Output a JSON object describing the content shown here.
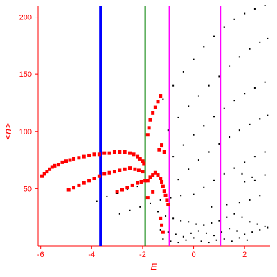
{
  "chart_data": {
    "type": "scatter",
    "title": "",
    "xlabel": "E",
    "ylabel": "<n>",
    "xlim": [
      -6.1,
      3.0
    ],
    "ylim": [
      0,
      210
    ],
    "xticks": [
      -6,
      -4,
      -2,
      0,
      2
    ],
    "yticks": [
      50,
      100,
      150,
      200
    ],
    "grid": false,
    "legend": "none",
    "colors": {
      "axis": "#ff0000",
      "red_series": "#ff0000",
      "black_series": "#000000",
      "blue_line": "#0000ff",
      "green_line": "#008000",
      "magenta_line": "#ff00ff"
    },
    "vertical_lines": [
      {
        "x": -3.65,
        "color": "#0000ff",
        "width": "thick"
      },
      {
        "x": -1.9,
        "color": "#008000",
        "width": "medium"
      },
      {
        "x": -0.95,
        "color": "#ff00ff",
        "width": "medium"
      },
      {
        "x": 1.05,
        "color": "#ff00ff",
        "width": "medium"
      }
    ],
    "series": [
      {
        "color": "#ff0000",
        "marker": "square",
        "points": [
          [
            -5.95,
            61
          ],
          [
            -5.85,
            63
          ],
          [
            -5.75,
            65
          ],
          [
            -5.65,
            67
          ],
          [
            -5.55,
            69
          ],
          [
            -5.45,
            70
          ],
          [
            -5.3,
            71
          ],
          [
            -5.15,
            73
          ],
          [
            -5.0,
            74
          ],
          [
            -4.85,
            75
          ],
          [
            -4.7,
            76
          ],
          [
            -4.5,
            77
          ],
          [
            -4.3,
            78
          ],
          [
            -4.1,
            79
          ],
          [
            -3.9,
            80
          ],
          [
            -3.7,
            80
          ],
          [
            -3.5,
            81
          ],
          [
            -3.3,
            81
          ],
          [
            -3.1,
            82
          ],
          [
            -2.9,
            82
          ],
          [
            -2.7,
            82
          ],
          [
            -2.5,
            81
          ],
          [
            -2.35,
            80
          ],
          [
            -2.2,
            78
          ],
          [
            -2.1,
            76
          ],
          [
            -2.0,
            74
          ],
          [
            -1.95,
            72
          ],
          [
            -4.9,
            49
          ],
          [
            -4.7,
            51
          ],
          [
            -4.5,
            53
          ],
          [
            -4.3,
            55
          ],
          [
            -4.1,
            57
          ],
          [
            -3.9,
            59
          ],
          [
            -3.7,
            61
          ],
          [
            -3.5,
            63
          ],
          [
            -3.3,
            64
          ],
          [
            -3.1,
            65
          ],
          [
            -2.9,
            66
          ],
          [
            -2.7,
            67
          ],
          [
            -2.5,
            68
          ],
          [
            -2.3,
            67
          ],
          [
            -2.15,
            66
          ],
          [
            -2.0,
            65
          ],
          [
            -3.0,
            47
          ],
          [
            -2.8,
            49
          ],
          [
            -2.6,
            51
          ],
          [
            -2.4,
            53
          ],
          [
            -2.2,
            55
          ],
          [
            -2.05,
            56
          ],
          [
            -1.9,
            57
          ],
          [
            -1.8,
            57
          ],
          [
            -1.7,
            60
          ],
          [
            -1.6,
            62
          ],
          [
            -1.5,
            64
          ],
          [
            -1.4,
            62
          ],
          [
            -1.3,
            59
          ],
          [
            -1.25,
            56
          ],
          [
            -1.2,
            52
          ],
          [
            -1.15,
            48
          ],
          [
            -1.1,
            44
          ],
          [
            -1.05,
            40
          ],
          [
            -1.0,
            36
          ],
          [
            -1.8,
            97
          ],
          [
            -1.75,
            103
          ],
          [
            -1.7,
            110
          ],
          [
            -1.6,
            116
          ],
          [
            -1.5,
            121
          ],
          [
            -1.4,
            126
          ],
          [
            -1.3,
            131
          ],
          [
            -1.35,
            84
          ],
          [
            -1.25,
            88
          ],
          [
            -1.15,
            82
          ],
          [
            -1.3,
            24
          ],
          [
            -1.25,
            18
          ],
          [
            -1.2,
            12
          ],
          [
            -1.8,
            42
          ],
          [
            -1.6,
            47
          ]
        ]
      },
      {
        "color": "#000000",
        "marker": "dot",
        "points": [
          [
            -1.2,
            128
          ],
          [
            -0.8,
            140
          ],
          [
            -0.4,
            152
          ],
          [
            0.0,
            163
          ],
          [
            0.4,
            174
          ],
          [
            0.8,
            183
          ],
          [
            1.2,
            191
          ],
          [
            1.6,
            198
          ],
          [
            2.0,
            203
          ],
          [
            2.4,
            207
          ],
          [
            2.8,
            210
          ],
          [
            -1.0,
            101
          ],
          [
            -0.6,
            112
          ],
          [
            -0.2,
            122
          ],
          [
            0.2,
            131
          ],
          [
            0.6,
            140
          ],
          [
            1.0,
            148
          ],
          [
            1.4,
            157
          ],
          [
            1.8,
            165
          ],
          [
            2.2,
            172
          ],
          [
            2.6,
            178
          ],
          [
            2.9,
            181
          ],
          [
            -0.8,
            78
          ],
          [
            -0.4,
            88
          ],
          [
            0.0,
            97
          ],
          [
            0.4,
            105
          ],
          [
            0.8,
            113
          ],
          [
            1.2,
            120
          ],
          [
            1.6,
            127
          ],
          [
            2.0,
            133
          ],
          [
            2.4,
            138
          ],
          [
            2.8,
            143
          ],
          [
            -0.6,
            58
          ],
          [
            -0.2,
            67
          ],
          [
            0.2,
            75
          ],
          [
            0.6,
            82
          ],
          [
            1.0,
            89
          ],
          [
            1.4,
            95
          ],
          [
            1.8,
            101
          ],
          [
            2.2,
            106
          ],
          [
            2.6,
            111
          ],
          [
            2.9,
            114
          ],
          [
            0.0,
            45
          ],
          [
            0.4,
            51
          ],
          [
            0.8,
            57
          ],
          [
            1.2,
            63
          ],
          [
            1.6,
            68
          ],
          [
            2.0,
            73
          ],
          [
            2.4,
            78
          ],
          [
            2.8,
            82
          ],
          [
            -3.8,
            39
          ],
          [
            -3.4,
            43
          ],
          [
            -3.0,
            46
          ],
          [
            -2.6,
            49
          ],
          [
            -2.2,
            52
          ],
          [
            -2.9,
            28
          ],
          [
            -2.5,
            31
          ],
          [
            -2.1,
            34
          ],
          [
            -1.7,
            37
          ],
          [
            -1.3,
            40
          ],
          [
            -0.9,
            42
          ],
          [
            -0.5,
            44
          ],
          [
            -1.4,
            30
          ],
          [
            -1.1,
            26
          ],
          [
            -0.8,
            24
          ],
          [
            -0.5,
            22
          ],
          [
            -0.2,
            21
          ],
          [
            0.1,
            19
          ],
          [
            0.4,
            18
          ],
          [
            0.7,
            20
          ],
          [
            1.0,
            22
          ],
          [
            1.3,
            25
          ],
          [
            1.6,
            28
          ],
          [
            1.9,
            25
          ],
          [
            2.2,
            21
          ],
          [
            2.5,
            19
          ],
          [
            2.8,
            17
          ],
          [
            -1.3,
            14
          ],
          [
            -1.0,
            12
          ],
          [
            -0.7,
            10
          ],
          [
            -0.4,
            8
          ],
          [
            -0.1,
            11
          ],
          [
            0.2,
            13
          ],
          [
            0.5,
            11
          ],
          [
            0.8,
            9
          ],
          [
            1.1,
            12
          ],
          [
            1.4,
            15
          ],
          [
            1.7,
            13
          ],
          [
            2.0,
            10
          ],
          [
            2.3,
            12
          ],
          [
            2.6,
            14
          ],
          [
            2.9,
            16
          ],
          [
            -1.2,
            6
          ],
          [
            -0.9,
            4
          ],
          [
            -0.6,
            3
          ],
          [
            -0.3,
            5
          ],
          [
            0.0,
            7
          ],
          [
            0.3,
            4
          ],
          [
            0.6,
            3
          ],
          [
            0.9,
            5
          ],
          [
            1.2,
            6
          ],
          [
            1.5,
            4
          ],
          [
            1.8,
            7
          ],
          [
            2.1,
            5
          ],
          [
            0.7,
            34
          ],
          [
            1.3,
            36
          ],
          [
            1.8,
            38
          ],
          [
            2.2,
            40
          ],
          [
            2.6,
            44
          ],
          [
            2.4,
            57
          ],
          [
            2.8,
            62
          ],
          [
            2.0,
            56
          ],
          [
            1.9,
            63
          ],
          [
            2.3,
            60
          ]
        ]
      }
    ]
  }
}
